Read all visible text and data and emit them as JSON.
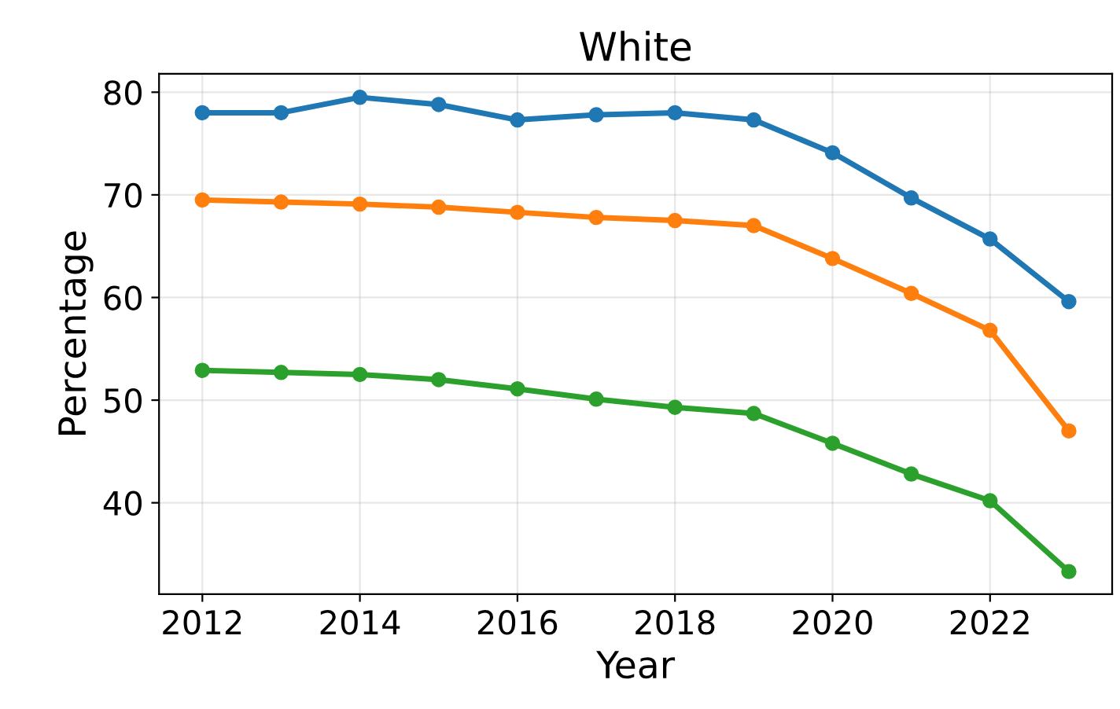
{
  "chart_data": {
    "type": "line",
    "title": "White",
    "xlabel": "Year",
    "ylabel": "Percentage",
    "x": [
      2012,
      2013,
      2014,
      2015,
      2016,
      2017,
      2018,
      2019,
      2020,
      2021,
      2022,
      2023
    ],
    "series": [
      {
        "color": "#1f77b4",
        "values": [
          78.0,
          78.0,
          79.5,
          78.8,
          77.3,
          77.8,
          78.0,
          77.3,
          74.1,
          69.7,
          65.7,
          59.6
        ]
      },
      {
        "color": "#ff7f0e",
        "values": [
          69.5,
          69.3,
          69.1,
          68.8,
          68.3,
          67.8,
          67.5,
          67.0,
          63.8,
          60.4,
          56.8,
          47.0
        ]
      },
      {
        "color": "#2ca02c",
        "values": [
          52.9,
          52.7,
          52.5,
          52.0,
          51.1,
          50.1,
          49.3,
          48.7,
          45.8,
          42.8,
          40.2,
          33.3
        ]
      }
    ],
    "xlim": [
      2011.45,
      2023.55
    ],
    "xticks": [
      2012,
      2014,
      2016,
      2018,
      2020,
      2022
    ],
    "ylim": [
      31.1,
      81.8
    ],
    "yticks": [
      40,
      50,
      60,
      70,
      80
    ],
    "grid": true,
    "marker": "circle",
    "line_style": "solid"
  }
}
